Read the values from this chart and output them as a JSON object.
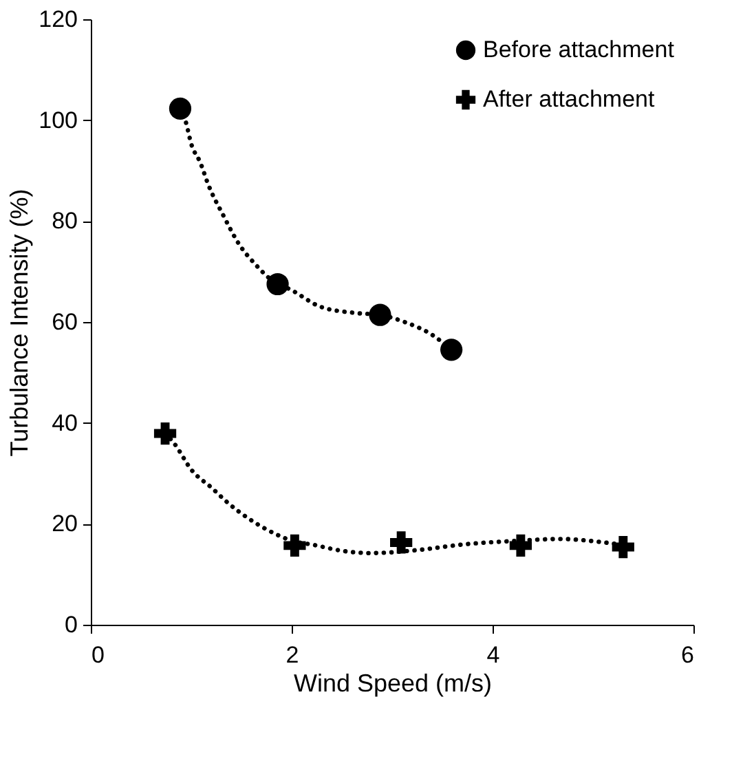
{
  "chart_data": {
    "type": "scatter",
    "xlabel": "Wind Speed (m/s)",
    "ylabel": "Turbulance Intensity (%)",
    "xlim": [
      0,
      6
    ],
    "xticks": [
      0,
      2,
      4,
      6
    ],
    "ylim": [
      0,
      120
    ],
    "yticks": [
      0,
      20,
      40,
      60,
      80,
      100,
      120
    ],
    "grid": false,
    "legend": "top right",
    "series": [
      {
        "name": "Before attachment",
        "marker": "circle",
        "color": "#000000",
        "x": [
          0.89,
          1.86,
          2.88,
          3.59
        ],
        "values": [
          102.3,
          67.5,
          61.4,
          54.5
        ]
      },
      {
        "name": "After attachment",
        "marker": "cross",
        "color": "#000000",
        "x": [
          0.74,
          2.03,
          3.09,
          4.28,
          5.3
        ],
        "values": [
          37.9,
          15.7,
          16.3,
          15.7,
          15.4
        ]
      },
      {
        "type": "line",
        "marker": "none",
        "line_style": "dotted",
        "color": "#000000",
        "x": [
          0.89,
          0.945,
          1.0,
          1.09,
          1.17,
          1.32,
          1.48,
          1.63,
          1.86,
          1.97,
          2.29,
          2.63,
          2.88,
          3.11,
          3.41,
          3.59
        ],
        "values": [
          102.3,
          99.7,
          95.3,
          91.6,
          87.2,
          81.1,
          75.3,
          71.6,
          67.5,
          66.6,
          63.0,
          61.8,
          61.4,
          60.1,
          57.3,
          54.5
        ]
      },
      {
        "type": "line",
        "marker": "none",
        "line_style": "dotted",
        "color": "#000000",
        "x": [
          0.74,
          0.82,
          1.01,
          1.2,
          1.38,
          1.56,
          1.74,
          2.03,
          2.2,
          2.52,
          2.79,
          3.25,
          3.75,
          4.21,
          4.68,
          5.03,
          5.3
        ],
        "values": [
          37.9,
          36.2,
          30.5,
          27.2,
          23.9,
          21.2,
          19.0,
          16.5,
          15.9,
          14.6,
          14.2,
          14.8,
          16.0,
          16.6,
          17.0,
          16.5,
          15.8
        ]
      }
    ]
  }
}
